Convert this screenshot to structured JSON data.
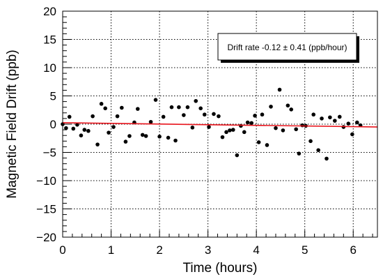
{
  "chart_data": {
    "type": "scatter",
    "title": "",
    "xlabel": "Time (hours)",
    "ylabel": "Magnetic Field Drift (ppb)",
    "xlim": [
      0,
      6.5
    ],
    "ylim": [
      -20,
      20
    ],
    "xticks": [
      "0",
      "1",
      "2",
      "3",
      "4",
      "5",
      "6"
    ],
    "yticks": [
      "−20",
      "−15",
      "−10",
      "−5",
      "0",
      "5",
      "10",
      "15",
      "20"
    ],
    "grid": true,
    "legend": {
      "placement": "top-right",
      "text": "Drift rate -0.12 ± 0.41 (ppb/hour)"
    },
    "fit_line": {
      "color": "#e8141c",
      "x": [
        0,
        6.5
      ],
      "y": [
        0.25,
        -0.5
      ]
    },
    "series": [
      {
        "marker_color": "#000000",
        "points": [
          [
            0.0,
            0.0
          ],
          [
            0.07,
            -0.7
          ],
          [
            0.14,
            1.3
          ],
          [
            0.22,
            -0.8
          ],
          [
            0.3,
            -0.1
          ],
          [
            0.38,
            -2.0
          ],
          [
            0.45,
            -1.0
          ],
          [
            0.53,
            -1.2
          ],
          [
            0.62,
            1.4
          ],
          [
            0.72,
            -3.6
          ],
          [
            0.8,
            3.6
          ],
          [
            0.88,
            2.8
          ],
          [
            0.95,
            -1.5
          ],
          [
            1.05,
            -0.5
          ],
          [
            1.13,
            1.4
          ],
          [
            1.22,
            2.9
          ],
          [
            1.3,
            -3.1
          ],
          [
            1.38,
            -2.1
          ],
          [
            1.48,
            0.3
          ],
          [
            1.55,
            2.7
          ],
          [
            1.65,
            -1.9
          ],
          [
            1.72,
            -2.1
          ],
          [
            1.82,
            0.4
          ],
          [
            1.92,
            4.3
          ],
          [
            2.0,
            -2.2
          ],
          [
            2.08,
            1.3
          ],
          [
            2.18,
            -2.4
          ],
          [
            2.25,
            3.0
          ],
          [
            2.33,
            -2.9
          ],
          [
            2.4,
            3.0
          ],
          [
            2.5,
            1.6
          ],
          [
            2.58,
            3.0
          ],
          [
            2.68,
            -0.6
          ],
          [
            2.75,
            4.1
          ],
          [
            2.85,
            2.8
          ],
          [
            2.93,
            1.7
          ],
          [
            3.02,
            -0.5
          ],
          [
            3.12,
            1.8
          ],
          [
            3.22,
            1.4
          ],
          [
            3.3,
            -2.3
          ],
          [
            3.38,
            -1.4
          ],
          [
            3.45,
            -1.1
          ],
          [
            3.52,
            -1.0
          ],
          [
            3.6,
            -5.5
          ],
          [
            3.68,
            -0.3
          ],
          [
            3.75,
            -1.4
          ],
          [
            3.82,
            0.3
          ],
          [
            3.9,
            0.2
          ],
          [
            3.97,
            1.5
          ],
          [
            4.05,
            -3.2
          ],
          [
            4.12,
            1.7
          ],
          [
            4.22,
            -3.7
          ],
          [
            4.3,
            3.1
          ],
          [
            4.4,
            -0.7
          ],
          [
            4.48,
            6.1
          ],
          [
            4.55,
            -1.1
          ],
          [
            4.65,
            3.3
          ],
          [
            4.72,
            2.6
          ],
          [
            4.82,
            -0.9
          ],
          [
            4.88,
            -5.2
          ],
          [
            4.95,
            -0.2
          ],
          [
            5.02,
            -0.3
          ],
          [
            5.12,
            -3.0
          ],
          [
            5.18,
            1.7
          ],
          [
            5.28,
            -4.6
          ],
          [
            5.35,
            1.0
          ],
          [
            5.45,
            -6.1
          ],
          [
            5.52,
            1.2
          ],
          [
            5.62,
            0.6
          ],
          [
            5.72,
            1.3
          ],
          [
            5.8,
            -0.5
          ],
          [
            5.9,
            0.1
          ],
          [
            5.98,
            -1.8
          ],
          [
            6.08,
            0.3
          ],
          [
            6.15,
            -0.2
          ]
        ]
      }
    ]
  }
}
